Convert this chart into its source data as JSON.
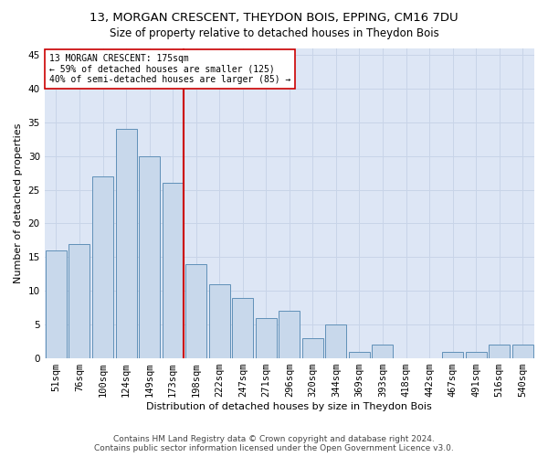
{
  "title1": "13, MORGAN CRESCENT, THEYDON BOIS, EPPING, CM16 7DU",
  "title2": "Size of property relative to detached houses in Theydon Bois",
  "xlabel": "Distribution of detached houses by size in Theydon Bois",
  "ylabel": "Number of detached properties",
  "categories": [
    "51sqm",
    "76sqm",
    "100sqm",
    "124sqm",
    "149sqm",
    "173sqm",
    "198sqm",
    "222sqm",
    "247sqm",
    "271sqm",
    "296sqm",
    "320sqm",
    "344sqm",
    "369sqm",
    "393sqm",
    "418sqm",
    "442sqm",
    "467sqm",
    "491sqm",
    "516sqm",
    "540sqm"
  ],
  "values": [
    16,
    17,
    27,
    34,
    30,
    26,
    14,
    11,
    9,
    6,
    7,
    3,
    5,
    1,
    2,
    0,
    0,
    1,
    1,
    2,
    2
  ],
  "bar_color": "#c8d8eb",
  "bar_edge_color": "#6090b8",
  "vline_index": 5,
  "vline_color": "#cc0000",
  "annotation_text": "13 MORGAN CRESCENT: 175sqm\n← 59% of detached houses are smaller (125)\n40% of semi-detached houses are larger (85) →",
  "annotation_box_facecolor": "#ffffff",
  "annotation_box_edgecolor": "#cc0000",
  "ylim": [
    0,
    46
  ],
  "yticks": [
    0,
    5,
    10,
    15,
    20,
    25,
    30,
    35,
    40,
    45
  ],
  "grid_color": "#c8d4e8",
  "bg_color": "#dde6f5",
  "footer1": "Contains HM Land Registry data © Crown copyright and database right 2024.",
  "footer2": "Contains public sector information licensed under the Open Government Licence v3.0.",
  "title1_fontsize": 9.5,
  "title2_fontsize": 8.5,
  "xlabel_fontsize": 8,
  "ylabel_fontsize": 8,
  "tick_fontsize": 7.5,
  "annotation_fontsize": 7,
  "footer_fontsize": 6.5
}
